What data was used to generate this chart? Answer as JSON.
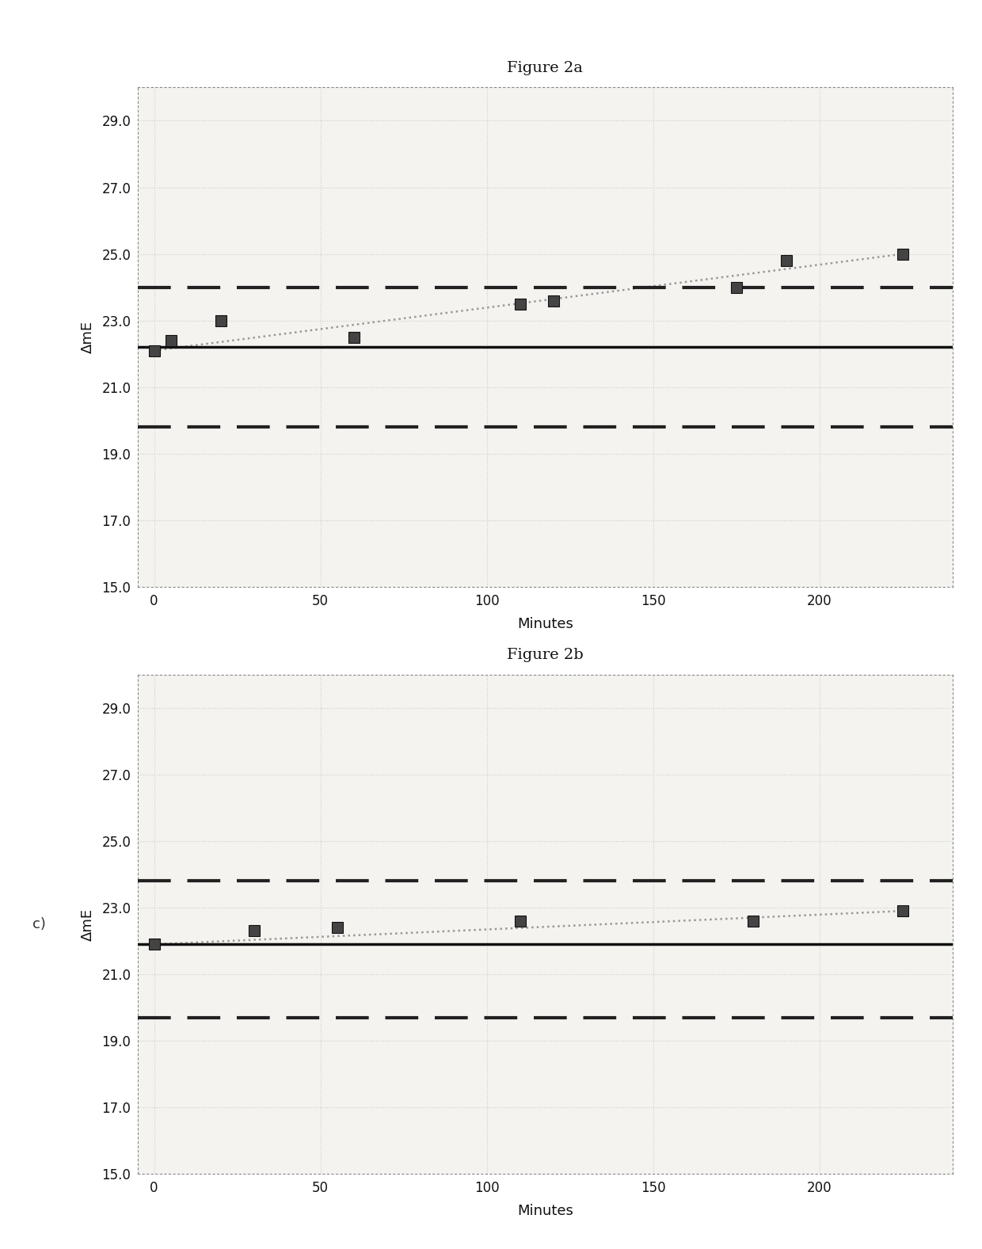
{
  "fig2a": {
    "title": "Figure 2a",
    "x_data": [
      0,
      5,
      20,
      60,
      110,
      120,
      175,
      190,
      225
    ],
    "y_data": [
      22.1,
      22.4,
      23.0,
      22.5,
      23.5,
      23.6,
      24.0,
      24.8,
      25.0
    ],
    "trend_x": [
      0,
      225
    ],
    "trend_y": [
      22.1,
      25.0
    ],
    "solid_line_y": 22.2,
    "upper_dashed_y": 24.0,
    "lower_dashed_y": 19.8,
    "xlabel": "Minutes",
    "ylabel": "ΔmE",
    "ylim": [
      15.0,
      30.0
    ],
    "xlim": [
      -5,
      240
    ],
    "yticks": [
      15.0,
      17.0,
      19.0,
      21.0,
      23.0,
      25.0,
      27.0,
      29.0
    ],
    "xticks": [
      0,
      50,
      100,
      150,
      200
    ]
  },
  "fig2b": {
    "title": "Figure 2b",
    "x_data": [
      0,
      30,
      55,
      110,
      180,
      225
    ],
    "y_data": [
      21.9,
      22.3,
      22.4,
      22.6,
      22.6,
      22.9
    ],
    "trend_x": [
      0,
      225
    ],
    "trend_y": [
      21.9,
      22.9
    ],
    "solid_line_y": 21.9,
    "upper_dashed_y": 23.8,
    "lower_dashed_y": 19.7,
    "xlabel": "Minutes",
    "ylabel": "ΔmE",
    "ylim": [
      15.0,
      30.0
    ],
    "xlim": [
      -5,
      240
    ],
    "yticks": [
      15.0,
      17.0,
      19.0,
      21.0,
      23.0,
      25.0,
      27.0,
      29.0
    ],
    "xticks": [
      0,
      50,
      100,
      150,
      200
    ],
    "side_label": "c)"
  },
  "bg_color": "#ffffff",
  "plot_bg_color": "#f5f3f0",
  "dashed_color": "#222222",
  "solid_color": "#111111",
  "trend_color": "#999999",
  "marker_color": "#333333",
  "border_color": "#aaaaaa",
  "title_fontsize": 14,
  "tick_fontsize": 12,
  "label_fontsize": 13
}
